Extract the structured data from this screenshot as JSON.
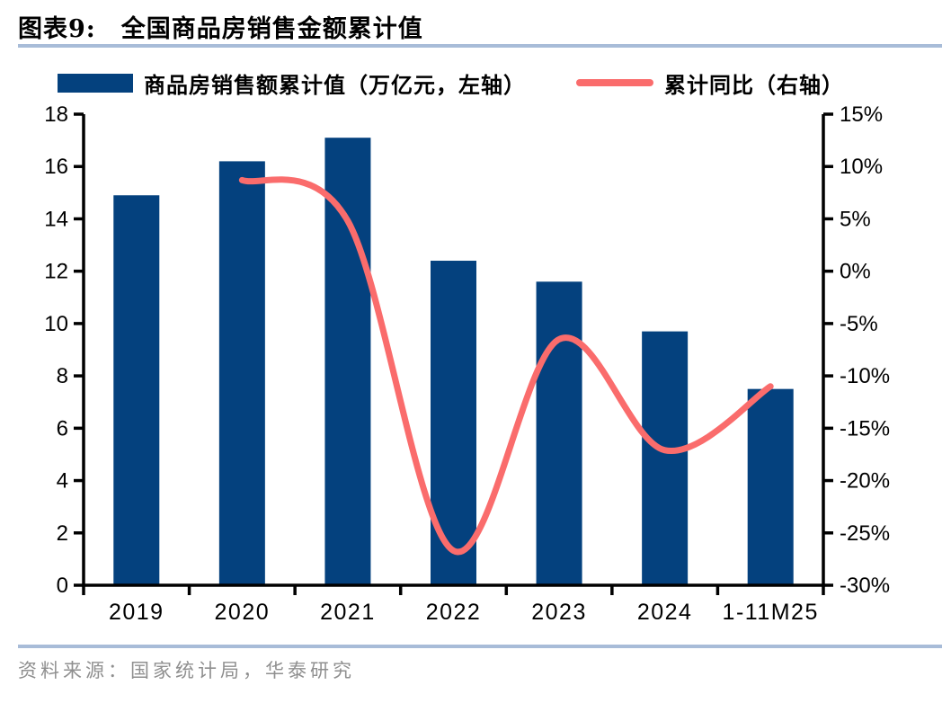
{
  "header": {
    "figure_label": "图表9:",
    "title": "全国商品房销售金额累计值"
  },
  "legend": {
    "bar_label": "商品房销售额累计值（万亿元，左轴）",
    "line_label": "累计同比（右轴）"
  },
  "source": "资料来源：国家统计局，华泰研究",
  "colors": {
    "bar": "#04417E",
    "line": "#FA6C6C",
    "rule": "#A8BCD8",
    "axis": "#000000",
    "source_text": "#8F8F8F"
  },
  "chart_data": {
    "type": "bar",
    "subtype": "bar+line combo, dual axis",
    "categories": [
      "2019",
      "2020",
      "2021",
      "2022",
      "2023",
      "2024",
      "1-11M25"
    ],
    "series": [
      {
        "name": "商品房销售额累计值（万亿元，左轴）",
        "type": "bar",
        "axis": "left",
        "color": "#04417E",
        "values": [
          14.9,
          16.2,
          17.1,
          12.4,
          11.6,
          9.7,
          7.5
        ]
      },
      {
        "name": "累计同比（右轴）",
        "type": "line",
        "axis": "right",
        "color": "#FA6C6C",
        "smooth": true,
        "values": [
          null,
          8.7,
          4.8,
          -26.7,
          -6.5,
          -17.1,
          -11.0
        ]
      }
    ],
    "left_axis": {
      "min": 0,
      "max": 18,
      "step": 2,
      "tick_values": [
        0,
        2,
        4,
        6,
        8,
        10,
        12,
        14,
        16,
        18
      ],
      "tick_labels": [
        "0",
        "2",
        "4",
        "6",
        "8",
        "10",
        "12",
        "14",
        "16",
        "18"
      ]
    },
    "right_axis": {
      "min": -30,
      "max": 15,
      "step": 5,
      "tick_values": [
        15,
        10,
        5,
        0,
        -5,
        -10,
        -15,
        -20,
        -25,
        -30
      ],
      "tick_labels": [
        "15%",
        "10%",
        "5%",
        "0%",
        "-5%",
        "-10%",
        "-15%",
        "-20%",
        "-25%",
        "-30%"
      ]
    },
    "grid": false,
    "legend_position": "top",
    "title": "全国商品房销售金额累计值"
  }
}
